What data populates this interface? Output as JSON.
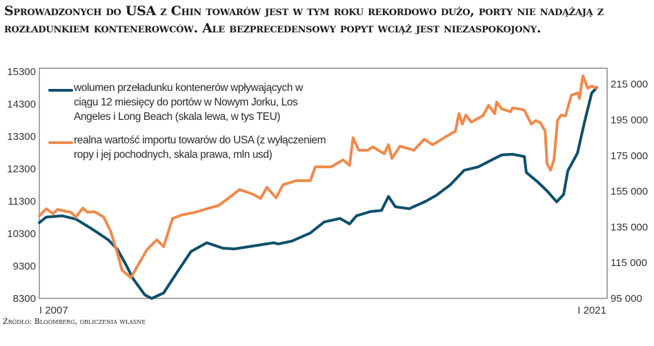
{
  "title": "Sprowadzonych do USA z Chin towarów jest w tym roku rekordowo dużo, porty nie nadążają z rozładunkiem kontenerowców. Ale bezprecedensowy popyt wciąż jest niezaspokojony.",
  "source": "Źródło: Bloomberg, obliczenia własne",
  "chart_data": {
    "type": "line",
    "title": "Sprowadzonych do USA z Chin towarów jest w tym roku rekordowo dużo, porty nie nadążają z rozładunkiem kontenerowców. Ale bezprecedensowy popyt wciąż jest niezaspokojony.",
    "x_range": [
      2007.0,
      2021.5
    ],
    "x_tick_labels": [
      "I 2007",
      "I 2021"
    ],
    "left_axis": {
      "range": [
        8300,
        15300
      ],
      "ticks": [
        "15300",
        "14300",
        "13300",
        "12300",
        "11300",
        "10300",
        "9300",
        "8300"
      ]
    },
    "right_axis": {
      "range": [
        95000,
        215000
      ],
      "ticks": [
        "215 000",
        "195 000",
        "175 000",
        "155 000",
        "135 000",
        "115 000",
        "95 000"
      ]
    },
    "grid": false,
    "legend_placement": "top-left",
    "series": [
      {
        "name": "wolumen przeładunku kontenerów wpływających w ciągu 12 miesięcy do portów w Nowym Jorku, Los Angeles i Long Beach (skala lewa, w tys TEU)",
        "axis": "left",
        "color": "#0e4f6c",
        "points": [
          [
            2007.0,
            10640
          ],
          [
            2007.18,
            10810
          ],
          [
            2007.59,
            10850
          ],
          [
            2007.95,
            10750
          ],
          [
            2008.36,
            10450
          ],
          [
            2008.79,
            10110
          ],
          [
            2009.03,
            9810
          ],
          [
            2009.26,
            9320
          ],
          [
            2009.44,
            8900
          ],
          [
            2009.74,
            8410
          ],
          [
            2009.92,
            8300
          ],
          [
            2010.23,
            8470
          ],
          [
            2010.58,
            9110
          ],
          [
            2010.94,
            9750
          ],
          [
            2011.35,
            10020
          ],
          [
            2011.77,
            9850
          ],
          [
            2012.07,
            9830
          ],
          [
            2012.56,
            9920
          ],
          [
            2013.09,
            10020
          ],
          [
            2013.2,
            9980
          ],
          [
            2013.56,
            10070
          ],
          [
            2014.04,
            10320
          ],
          [
            2014.4,
            10660
          ],
          [
            2014.81,
            10770
          ],
          [
            2015.06,
            10600
          ],
          [
            2015.24,
            10850
          ],
          [
            2015.6,
            10980
          ],
          [
            2015.89,
            11020
          ],
          [
            2016.07,
            11450
          ],
          [
            2016.25,
            11130
          ],
          [
            2016.61,
            11070
          ],
          [
            2017.04,
            11300
          ],
          [
            2017.32,
            11490
          ],
          [
            2017.68,
            11810
          ],
          [
            2018.04,
            12260
          ],
          [
            2018.4,
            12360
          ],
          [
            2018.76,
            12580
          ],
          [
            2019.01,
            12730
          ],
          [
            2019.29,
            12750
          ],
          [
            2019.6,
            12680
          ],
          [
            2019.65,
            12190
          ],
          [
            2019.96,
            11880
          ],
          [
            2020.19,
            11620
          ],
          [
            2020.44,
            11280
          ],
          [
            2020.62,
            11510
          ],
          [
            2020.73,
            12240
          ],
          [
            2020.98,
            12790
          ],
          [
            2021.16,
            13730
          ],
          [
            2021.35,
            14640
          ],
          [
            2021.48,
            14810
          ]
        ]
      },
      {
        "name": "realna wartość importu towarów do USA (z wyłączeniem ropy i jej pochodnych, skala prawa, mln usd)",
        "axis": "right",
        "color": "#f08a4b",
        "points": [
          [
            2007.0,
            141300
          ],
          [
            2007.18,
            145200
          ],
          [
            2007.36,
            142500
          ],
          [
            2007.47,
            144800
          ],
          [
            2007.82,
            143300
          ],
          [
            2007.95,
            140600
          ],
          [
            2008.13,
            145600
          ],
          [
            2008.25,
            143300
          ],
          [
            2008.43,
            143600
          ],
          [
            2008.67,
            140600
          ],
          [
            2008.85,
            132800
          ],
          [
            2009.03,
            120100
          ],
          [
            2009.15,
            110800
          ],
          [
            2009.38,
            106600
          ],
          [
            2009.56,
            113500
          ],
          [
            2009.8,
            122400
          ],
          [
            2010.05,
            127800
          ],
          [
            2010.23,
            124000
          ],
          [
            2010.46,
            139800
          ],
          [
            2010.69,
            141700
          ],
          [
            2011.05,
            143300
          ],
          [
            2011.41,
            145600
          ],
          [
            2011.66,
            147100
          ],
          [
            2012.02,
            152900
          ],
          [
            2012.2,
            156000
          ],
          [
            2012.56,
            153300
          ],
          [
            2012.75,
            151000
          ],
          [
            2012.91,
            157200
          ],
          [
            2013.15,
            151400
          ],
          [
            2013.33,
            158700
          ],
          [
            2013.68,
            161000
          ],
          [
            2014.04,
            161000
          ],
          [
            2014.17,
            168700
          ],
          [
            2014.58,
            168700
          ],
          [
            2014.89,
            172600
          ],
          [
            2015.06,
            169500
          ],
          [
            2015.15,
            185000
          ],
          [
            2015.3,
            178000
          ],
          [
            2015.53,
            178000
          ],
          [
            2015.66,
            179900
          ],
          [
            2015.96,
            176100
          ],
          [
            2016.07,
            181100
          ],
          [
            2016.16,
            173400
          ],
          [
            2016.37,
            180300
          ],
          [
            2016.73,
            178000
          ],
          [
            2017.0,
            184200
          ],
          [
            2017.22,
            181100
          ],
          [
            2017.57,
            185700
          ],
          [
            2017.81,
            188800
          ],
          [
            2017.9,
            198500
          ],
          [
            2017.99,
            192700
          ],
          [
            2018.08,
            197700
          ],
          [
            2018.22,
            193800
          ],
          [
            2018.52,
            197300
          ],
          [
            2018.67,
            203100
          ],
          [
            2018.83,
            198500
          ],
          [
            2018.88,
            205000
          ],
          [
            2019.01,
            201200
          ],
          [
            2019.24,
            199600
          ],
          [
            2019.29,
            201600
          ],
          [
            2019.47,
            201200
          ],
          [
            2019.6,
            200400
          ],
          [
            2019.78,
            192700
          ],
          [
            2019.9,
            194600
          ],
          [
            2020.01,
            193500
          ],
          [
            2020.14,
            188800
          ],
          [
            2020.19,
            170300
          ],
          [
            2020.28,
            166800
          ],
          [
            2020.37,
            172600
          ],
          [
            2020.46,
            194600
          ],
          [
            2020.55,
            197700
          ],
          [
            2020.67,
            197300
          ],
          [
            2020.82,
            208900
          ],
          [
            2020.98,
            210100
          ],
          [
            2021.03,
            207000
          ],
          [
            2021.12,
            219700
          ],
          [
            2021.25,
            212800
          ],
          [
            2021.35,
            213900
          ],
          [
            2021.48,
            212800
          ]
        ]
      }
    ]
  },
  "legend": {
    "blue_lines": [
      "wolumen przeładunku kontenerów wpływających w",
      "ciągu 12 miesięcy do portów w Nowym Jorku, Los",
      "Angeles i Long Beach (skala lewa, w tys TEU)"
    ],
    "orange_lines": [
      "realna wartość importu towarów do USA (z wyłączeniem",
      "ropy i jej pochodnych, skala prawa, mln usd)"
    ]
  }
}
